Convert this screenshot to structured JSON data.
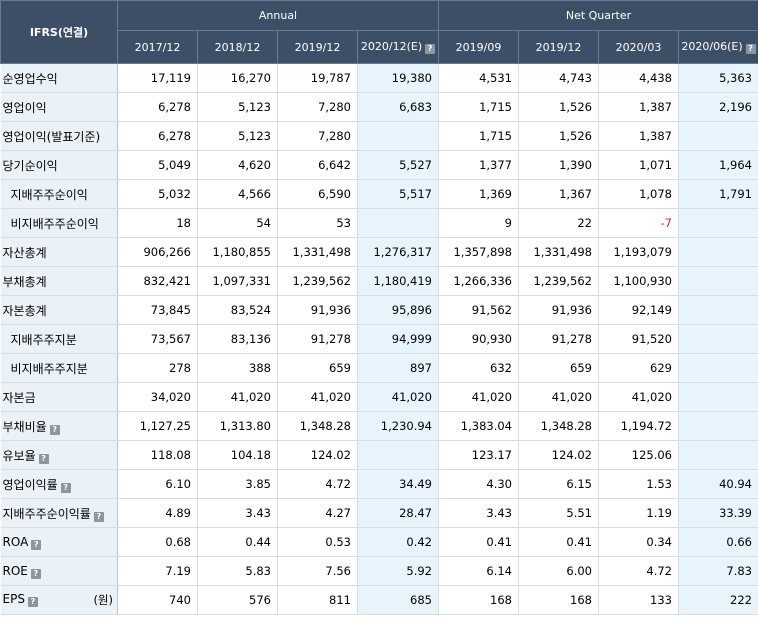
{
  "header": {
    "corner": "IFRS(연결)",
    "group_annual": "Annual",
    "group_quarter": "Net Quarter",
    "columns": [
      "2017/12",
      "2018/12",
      "2019/12",
      "2020/12(E)",
      "2019/09",
      "2019/12",
      "2020/03",
      "2020/06(E)"
    ],
    "estimate_icon": "question-icon"
  },
  "rows": [
    {
      "label": "순영업수익",
      "sub": false,
      "icon": false,
      "values": [
        "17,119",
        "16,270",
        "19,787",
        "19,380",
        "4,531",
        "4,743",
        "4,438",
        "5,363"
      ]
    },
    {
      "label": "영업이익",
      "sub": false,
      "icon": false,
      "values": [
        "6,278",
        "5,123",
        "7,280",
        "6,683",
        "1,715",
        "1,526",
        "1,387",
        "2,196"
      ]
    },
    {
      "label": "영업이익(발표기준)",
      "sub": false,
      "icon": false,
      "values": [
        "6,278",
        "5,123",
        "7,280",
        "",
        "1,715",
        "1,526",
        "1,387",
        ""
      ]
    },
    {
      "label": "당기순이익",
      "sub": false,
      "icon": false,
      "values": [
        "5,049",
        "4,620",
        "6,642",
        "5,527",
        "1,377",
        "1,390",
        "1,071",
        "1,964"
      ]
    },
    {
      "label": "지배주주순이익",
      "sub": true,
      "icon": false,
      "values": [
        "5,032",
        "4,566",
        "6,590",
        "5,517",
        "1,369",
        "1,367",
        "1,078",
        "1,791"
      ]
    },
    {
      "label": "비지배주주순이익",
      "sub": true,
      "icon": false,
      "values": [
        "18",
        "54",
        "53",
        "",
        "9",
        "22",
        "-7",
        ""
      ]
    },
    {
      "label": "자산총계",
      "sub": false,
      "icon": false,
      "values": [
        "906,266",
        "1,180,855",
        "1,331,498",
        "1,276,317",
        "1,357,898",
        "1,331,498",
        "1,193,079",
        ""
      ]
    },
    {
      "label": "부채총계",
      "sub": false,
      "icon": false,
      "values": [
        "832,421",
        "1,097,331",
        "1,239,562",
        "1,180,419",
        "1,266,336",
        "1,239,562",
        "1,100,930",
        ""
      ]
    },
    {
      "label": "자본총계",
      "sub": false,
      "icon": false,
      "values": [
        "73,845",
        "83,524",
        "91,936",
        "95,896",
        "91,562",
        "91,936",
        "92,149",
        ""
      ]
    },
    {
      "label": "지배주주지분",
      "sub": true,
      "icon": false,
      "values": [
        "73,567",
        "83,136",
        "91,278",
        "94,999",
        "90,930",
        "91,278",
        "91,520",
        ""
      ]
    },
    {
      "label": "비지배주주지분",
      "sub": true,
      "icon": false,
      "values": [
        "278",
        "388",
        "659",
        "897",
        "632",
        "659",
        "629",
        ""
      ]
    },
    {
      "label": "자본금",
      "sub": false,
      "icon": false,
      "values": [
        "34,020",
        "41,020",
        "41,020",
        "41,020",
        "41,020",
        "41,020",
        "41,020",
        ""
      ]
    },
    {
      "label": "부채비율",
      "sub": false,
      "icon": true,
      "values": [
        "1,127.25",
        "1,313.80",
        "1,348.28",
        "1,230.94",
        "1,383.04",
        "1,348.28",
        "1,194.72",
        ""
      ]
    },
    {
      "label": "유보율",
      "sub": false,
      "icon": true,
      "values": [
        "118.08",
        "104.18",
        "124.02",
        "",
        "123.17",
        "124.02",
        "125.06",
        ""
      ]
    },
    {
      "label": "영업이익률",
      "sub": false,
      "icon": true,
      "values": [
        "6.10",
        "3.85",
        "4.72",
        "34.49",
        "4.30",
        "6.15",
        "1.53",
        "40.94"
      ]
    },
    {
      "label": "지배주주순이익률",
      "sub": false,
      "icon": true,
      "values": [
        "4.89",
        "3.43",
        "4.27",
        "28.47",
        "3.43",
        "5.51",
        "1.19",
        "33.39"
      ]
    },
    {
      "label": "ROA",
      "sub": false,
      "icon": true,
      "values": [
        "0.68",
        "0.44",
        "0.53",
        "0.42",
        "0.41",
        "0.41",
        "0.34",
        "0.66"
      ]
    },
    {
      "label": "ROE",
      "sub": false,
      "icon": true,
      "values": [
        "7.19",
        "5.83",
        "7.56",
        "5.92",
        "6.14",
        "6.00",
        "4.72",
        "7.83"
      ]
    },
    {
      "label": "EPS",
      "sub": false,
      "icon": true,
      "unit": "(원)",
      "values": [
        "740",
        "576",
        "811",
        "685",
        "168",
        "168",
        "133",
        "222"
      ]
    }
  ],
  "estimate_columns": [
    3,
    7
  ],
  "colors": {
    "header_bg": "#3d4f67",
    "label_bg": "#eaf1f7",
    "estimate_bg": "#e8f4fb",
    "negative": "#e0271c"
  }
}
